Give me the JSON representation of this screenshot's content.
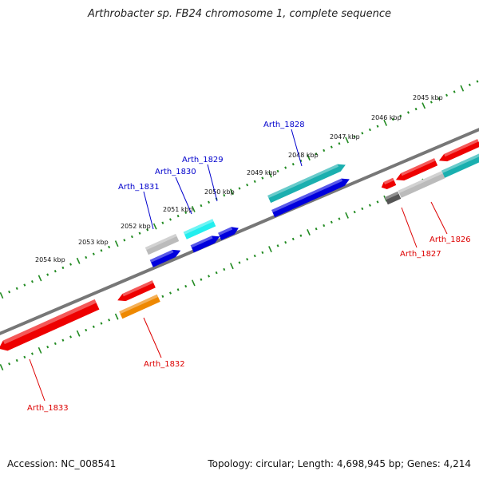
{
  "title": "Arthrobacter sp. FB24 chromosome 1, complete sequence",
  "footer": {
    "accession": "Accession: NC_008541",
    "summary": "Topology: circular; Length: 4,698,945 bp; Genes: 4,214"
  },
  "ruler_labels": [
    "2045 kbp",
    "2046 kbp",
    "2047 kbp",
    "2048 kbp",
    "2049 kbp",
    "2050 kbp",
    "2051 kbp",
    "2052 kbp",
    "2053 kbp",
    "2054 kbp"
  ],
  "gene_labels_top": [
    "Arth_1828",
    "Arth_1829",
    "Arth_1830",
    "Arth_1831"
  ],
  "gene_labels_bottom": [
    "Arth_1826",
    "Arth_1827",
    "Arth_1832",
    "Arth_1833"
  ],
  "colors": {
    "backbone": "#777777",
    "ticks": "#228B22",
    "label_top": "#0000CC",
    "label_bottom": "#DD0000",
    "red": "#EE0000",
    "blue": "#0000DD",
    "teal": "#1AAFAF",
    "cyan": "#22EEEE",
    "gray": "#BBBBBB",
    "darkgray": "#555555",
    "orange": "#EE8800"
  }
}
